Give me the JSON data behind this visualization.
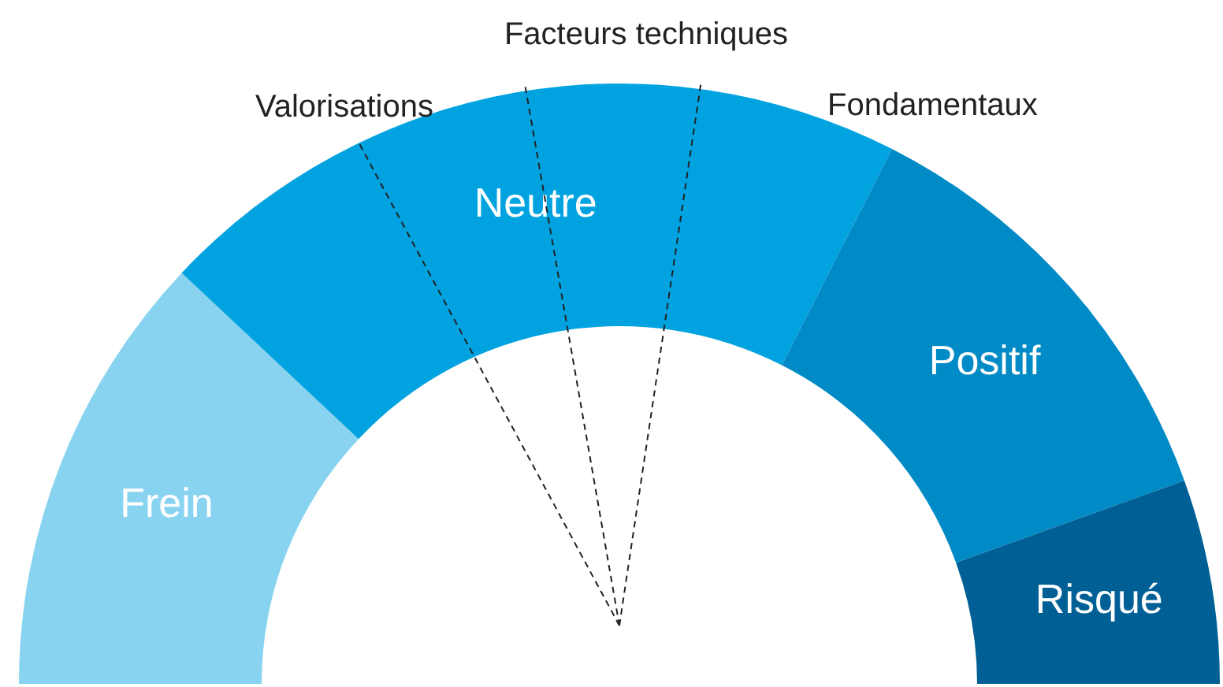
{
  "chart_data": {
    "type": "donut",
    "categories": [
      "Frein",
      "Neutre",
      "Positif",
      "Risqué"
    ],
    "values": [
      24,
      41,
      24,
      11
    ],
    "colors": [
      "#87d3f0",
      "#00a3e0",
      "#008ac6",
      "#006096"
    ],
    "needle": "Neutre",
    "annotations": [
      "Valorisations",
      "Facteurs techniques",
      "Fondamentaux"
    ]
  }
}
